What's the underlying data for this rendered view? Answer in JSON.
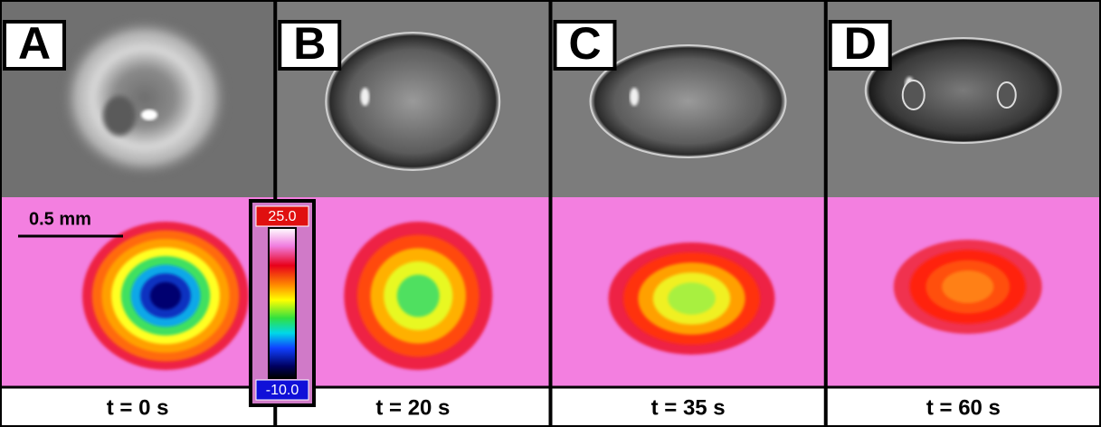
{
  "panels": [
    {
      "letter": "A",
      "time": "t = 0 s"
    },
    {
      "letter": "B",
      "time": "t = 20 s"
    },
    {
      "letter": "C",
      "time": "t = 35 s"
    },
    {
      "letter": "D",
      "time": "t = 60 s"
    }
  ],
  "scale_bar": "0.5 mm",
  "colorbar": {
    "max": "25.0",
    "min": "-10.0"
  }
}
